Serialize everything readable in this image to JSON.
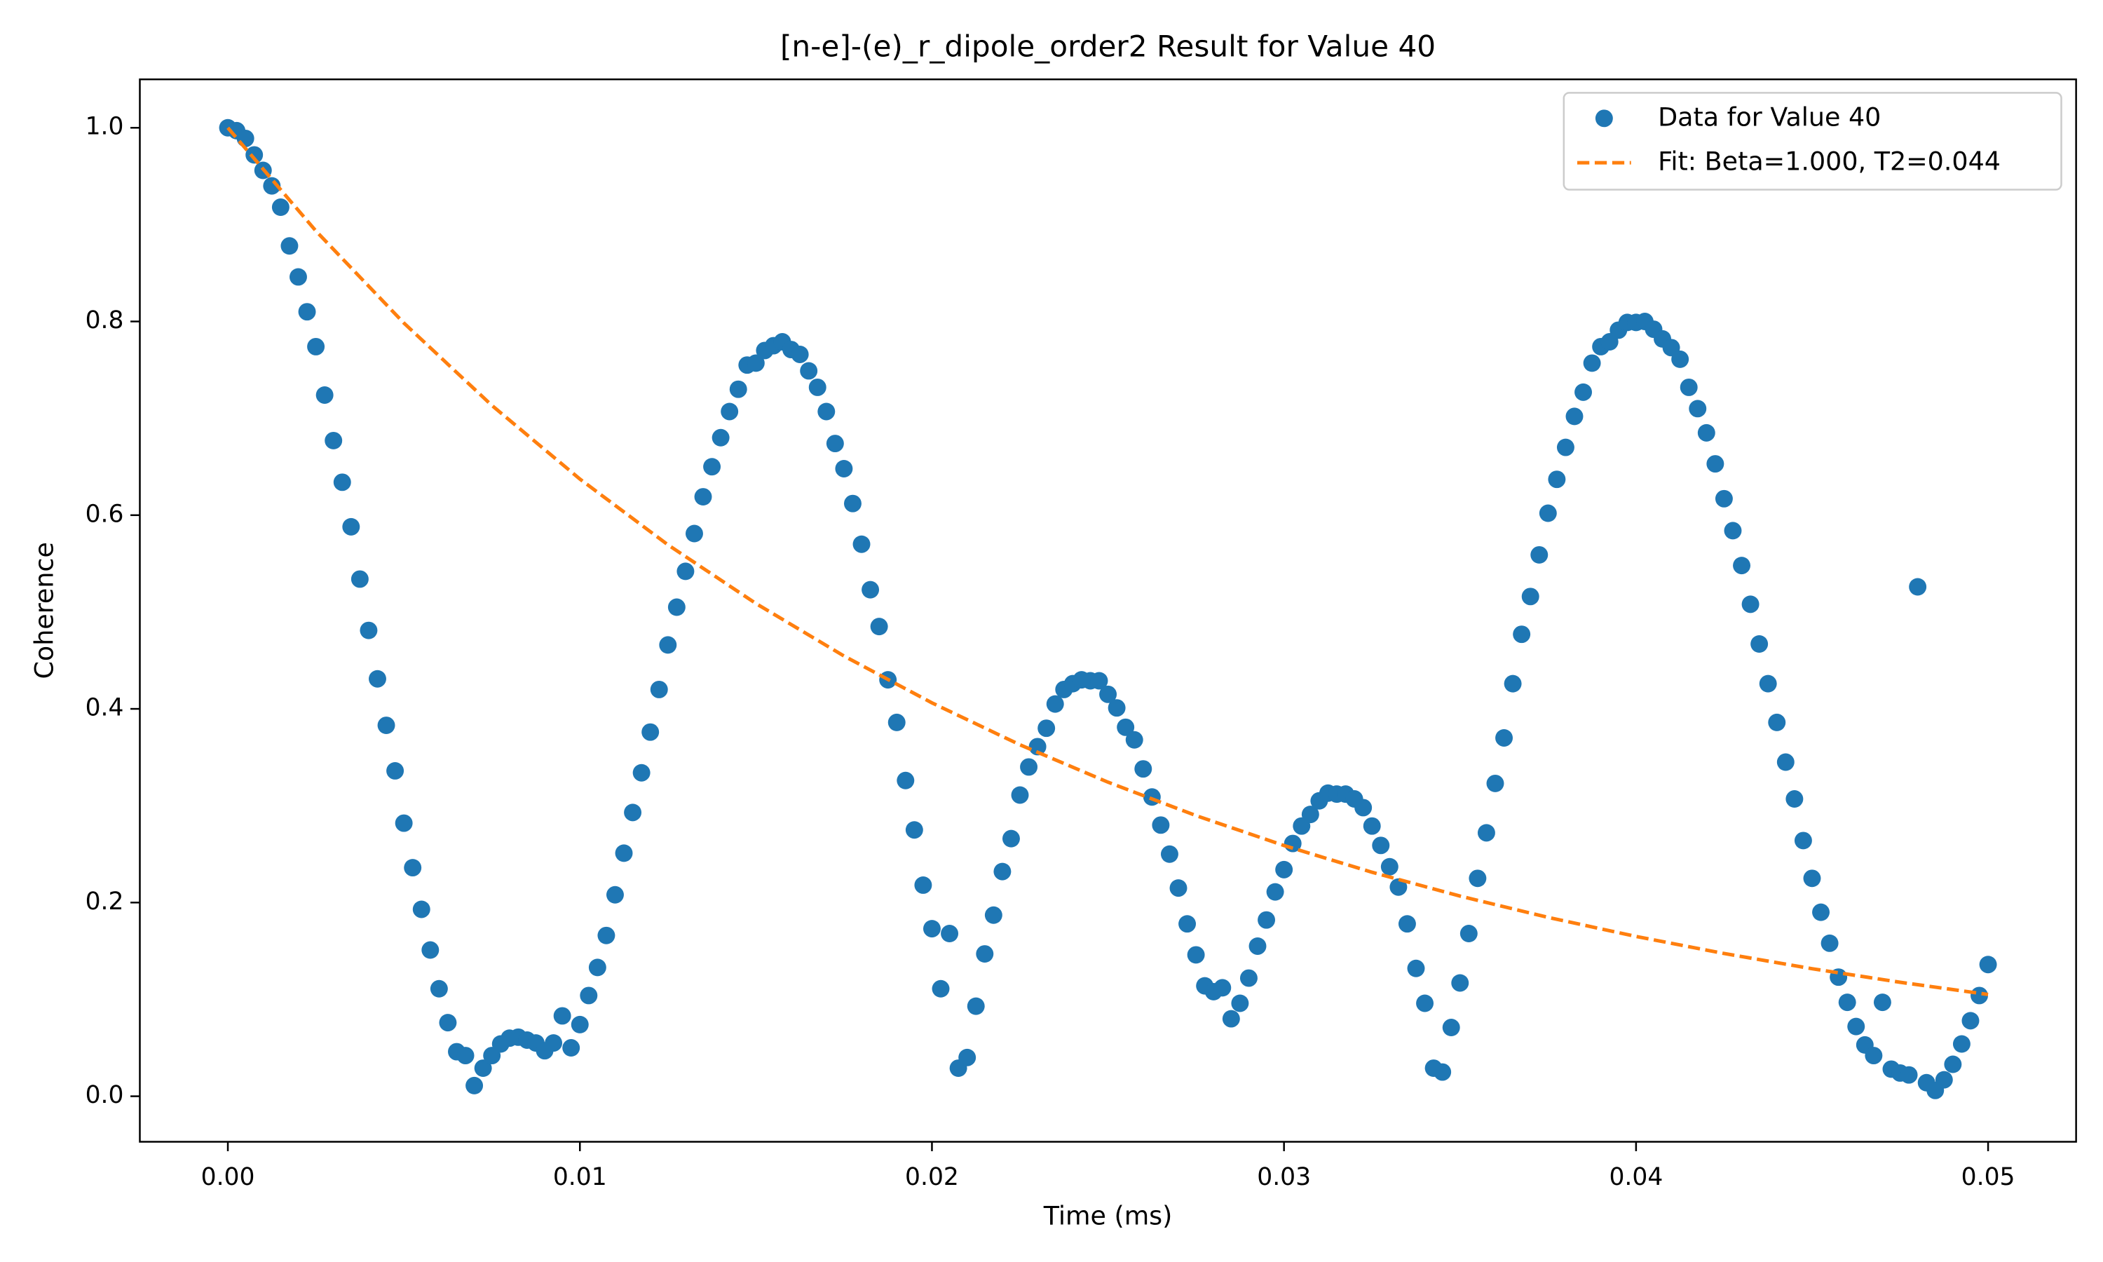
{
  "chart_data": {
    "type": "scatter",
    "title": "[n-e]-(e)_r_dipole_order2 Result for Value 40",
    "xlabel": "Time (ms)",
    "ylabel": "Coherence",
    "xlim": [
      -0.0025,
      0.0525
    ],
    "ylim": [
      -0.047,
      1.05
    ],
    "xticks": [
      {
        "value": 0,
        "label": "0.00"
      },
      0.01,
      0.02,
      0.03,
      0.04,
      0.05
    ],
    "yticks": [
      {
        "value": 0,
        "label": "0.0"
      },
      0.2,
      0.4,
      0.6,
      0.8,
      {
        "value": 1,
        "label": "1.0"
      }
    ],
    "legend": "upper right",
    "series": [
      {
        "name": "Data for Value 40",
        "type": "scatter",
        "color": "#1f77b4",
        "x": [
          0,
          0.00025,
          0.0005,
          0.00075,
          0.001,
          0.00125,
          0.0015,
          0.00175,
          0.002,
          0.00225,
          0.0025,
          0.00275,
          0.003,
          0.00325,
          0.0035,
          0.00375,
          0.004,
          0.00425,
          0.0045,
          0.00475,
          0.005,
          0.00525,
          0.0055,
          0.00575,
          0.006,
          0.00625,
          0.0065,
          0.00675,
          0.007,
          0.00725,
          0.0075,
          0.00775,
          0.008,
          0.00825,
          0.0085,
          0.00875,
          0.009,
          0.00925,
          0.0095,
          0.00975,
          0.01,
          0.01025,
          0.0105,
          0.01075,
          0.011,
          0.01125,
          0.0115,
          0.01175,
          0.012,
          0.01225,
          0.0125,
          0.01275,
          0.013,
          0.01325,
          0.0135,
          0.01375,
          0.014,
          0.01425,
          0.0145,
          0.01475,
          0.015,
          0.01525,
          0.0155,
          0.01575,
          0.016,
          0.01625,
          0.0165,
          0.01675,
          0.017,
          0.01725,
          0.0175,
          0.01775,
          0.018,
          0.01825,
          0.0185,
          0.01875,
          0.019,
          0.01925,
          0.0195,
          0.01975,
          0.02,
          0.02025,
          0.0205,
          0.02075,
          0.021,
          0.02125,
          0.0215,
          0.02175,
          0.022,
          0.02225,
          0.0225,
          0.02275,
          0.023,
          0.02325,
          0.0235,
          0.02375,
          0.024,
          0.02425,
          0.0245,
          0.02475,
          0.025,
          0.02525,
          0.0255,
          0.02575,
          0.026,
          0.02625,
          0.0265,
          0.02675,
          0.027,
          0.02725,
          0.0275,
          0.02775,
          0.028,
          0.02825,
          0.0285,
          0.02875,
          0.029,
          0.02925,
          0.0295,
          0.02975,
          0.03,
          0.03025,
          0.0305,
          0.03075,
          0.031,
          0.03125,
          0.0315,
          0.03175,
          0.032,
          0.03225,
          0.0325,
          0.03275,
          0.033,
          0.03325,
          0.0335,
          0.03375,
          0.034,
          0.03425,
          0.0345,
          0.03475,
          0.035,
          0.03525,
          0.0355,
          0.03575,
          0.036,
          0.03625,
          0.0365,
          0.03675,
          0.037,
          0.03725,
          0.0375,
          0.03775,
          0.038,
          0.03825,
          0.0385,
          0.03875,
          0.039,
          0.03925,
          0.0395,
          0.03975,
          0.04,
          0.04025,
          0.0405,
          0.04075,
          0.041,
          0.04125,
          0.0415,
          0.04175,
          0.042,
          0.04225,
          0.0425,
          0.04275,
          0.043,
          0.04325,
          0.0435,
          0.04375,
          0.044,
          0.04425,
          0.0445,
          0.04475,
          0.045,
          0.04525,
          0.0455,
          0.04575,
          0.046,
          0.04625,
          0.0465,
          0.04675,
          0.047,
          0.04725,
          0.0475,
          0.04775,
          0.048,
          0.04825,
          0.0485,
          0.04875,
          0.049,
          0.04925,
          0.0495,
          0.04975,
          0.05
        ],
        "values": [
          1.0,
          0.997,
          0.989,
          0.972,
          0.956,
          0.94,
          0.918,
          0.878,
          0.846,
          0.81,
          0.774,
          0.724,
          0.677,
          0.634,
          0.588,
          0.534,
          0.481,
          0.431,
          0.383,
          0.336,
          0.282,
          0.236,
          0.193,
          0.151,
          0.111,
          0.076,
          0.046,
          0.042,
          0.011,
          0.029,
          0.042,
          0.054,
          0.06,
          0.061,
          0.058,
          0.055,
          0.047,
          0.055,
          0.083,
          0.05,
          0.074,
          0.104,
          0.133,
          0.166,
          0.208,
          0.251,
          0.293,
          0.334,
          0.376,
          0.42,
          0.466,
          0.505,
          0.542,
          0.581,
          0.619,
          0.65,
          0.68,
          0.707,
          0.73,
          0.755,
          0.757,
          0.77,
          0.775,
          0.779,
          0.771,
          0.766,
          0.749,
          0.732,
          0.707,
          0.674,
          0.648,
          0.612,
          0.57,
          0.523,
          0.485,
          0.43,
          0.386,
          0.326,
          0.275,
          0.218,
          0.173,
          0.111,
          0.168,
          0.029,
          0.04,
          0.093,
          0.147,
          0.187,
          0.232,
          0.266,
          0.311,
          0.34,
          0.361,
          0.38,
          0.405,
          0.42,
          0.426,
          0.43,
          0.429,
          0.429,
          0.415,
          0.401,
          0.381,
          0.368,
          0.338,
          0.309,
          0.28,
          0.25,
          0.215,
          0.178,
          0.146,
          0.114,
          0.108,
          0.112,
          0.08,
          0.096,
          0.122,
          0.155,
          0.182,
          0.211,
          0.234,
          0.261,
          0.279,
          0.291,
          0.305,
          0.313,
          0.312,
          0.312,
          0.307,
          0.298,
          0.279,
          0.259,
          0.237,
          0.216,
          0.178,
          0.132,
          0.096,
          0.029,
          0.025,
          0.071,
          0.117,
          0.168,
          0.225,
          0.272,
          0.323,
          0.37,
          0.426,
          0.477,
          0.516,
          0.559,
          0.602,
          0.637,
          0.67,
          0.702,
          0.727,
          0.757,
          0.774,
          0.779,
          0.791,
          0.799,
          0.799,
          0.8,
          0.792,
          0.782,
          0.773,
          0.761,
          0.732,
          0.71,
          0.685,
          0.653,
          0.617,
          0.584,
          0.548,
          0.508,
          0.467,
          0.426,
          0.386,
          0.345,
          0.307,
          0.264,
          0.225,
          0.19,
          0.158,
          0.123,
          0.097,
          0.072,
          0.053,
          0.042,
          0.097,
          0.028,
          0.024,
          0.022,
          0.526,
          0.014,
          0.006,
          0.017,
          0.033,
          0.054,
          0.078,
          0.104,
          0.136
        ]
      },
      {
        "name": "Fit: Beta=1.000, T2=0.044",
        "type": "line",
        "color": "#ff7f0e",
        "linestyle": "dashed",
        "x": [
          0,
          0.0025,
          0.005,
          0.0075,
          0.01,
          0.0125,
          0.015,
          0.0175,
          0.02,
          0.0225,
          0.025,
          0.0275,
          0.03,
          0.0325,
          0.035,
          0.0375,
          0.04,
          0.0425,
          0.045,
          0.0475,
          0.05
        ],
        "values": [
          1.0,
          0.8935,
          0.7984,
          0.7133,
          0.6373,
          0.5694,
          0.5088,
          0.4546,
          0.4062,
          0.3629,
          0.3243,
          0.2898,
          0.2589,
          0.2313,
          0.2067,
          0.1847,
          0.165,
          0.1474,
          0.1317,
          0.1177,
          0.1051
        ]
      }
    ]
  }
}
